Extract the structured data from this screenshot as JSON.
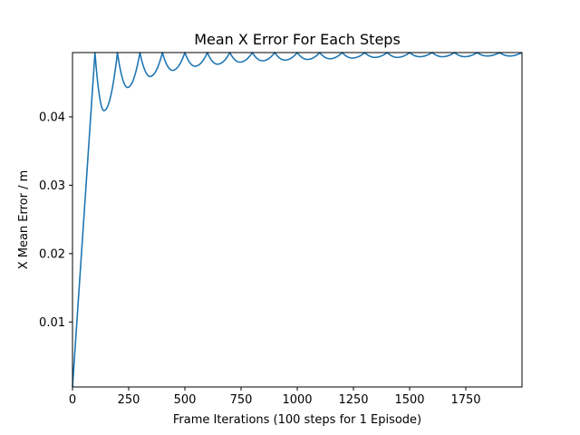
{
  "chart_data": {
    "type": "line",
    "title": "Mean X Error For Each Steps",
    "xlabel": "Frame Iterations (100 steps for 1 Episode)",
    "ylabel": "X Mean Error / m",
    "xlim": [
      0,
      2000
    ],
    "ylim": [
      0.0005,
      0.0494
    ],
    "xticks": [
      0,
      250,
      500,
      750,
      1000,
      1250,
      1500,
      1750
    ],
    "xtick_labels": [
      "0",
      "250",
      "500",
      "750",
      "1000",
      "1250",
      "1500",
      "1750"
    ],
    "yticks": [
      0.01,
      0.02,
      0.03,
      0.04
    ],
    "ytick_labels": [
      "0.01",
      "0.02",
      "0.03",
      "0.04"
    ],
    "grid": false,
    "legend": "none",
    "line_color": "#1f77b4",
    "series": [
      {
        "name": "",
        "x": [
          0,
          100,
          140,
          200,
          245,
          300,
          345,
          400,
          445,
          500,
          545,
          600,
          645,
          700,
          745,
          800,
          845,
          900,
          945,
          1000,
          1045,
          1100,
          1145,
          1200,
          1245,
          1300,
          1345,
          1400,
          1445,
          1500,
          1545,
          1600,
          1645,
          1700,
          1745,
          1800,
          1845,
          1900,
          1945,
          1999
        ],
        "y": [
          0.0005,
          0.0494,
          0.0409,
          0.0494,
          0.0443,
          0.0494,
          0.0459,
          0.0494,
          0.0468,
          0.0494,
          0.0474,
          0.0494,
          0.0477,
          0.0494,
          0.048,
          0.0494,
          0.0482,
          0.0494,
          0.0483,
          0.0494,
          0.0484,
          0.0494,
          0.0485,
          0.0494,
          0.0486,
          0.0494,
          0.0487,
          0.0494,
          0.0487,
          0.0494,
          0.0488,
          0.0494,
          0.0488,
          0.0494,
          0.0488,
          0.0494,
          0.0489,
          0.0494,
          0.0489,
          0.0494
        ]
      }
    ]
  }
}
